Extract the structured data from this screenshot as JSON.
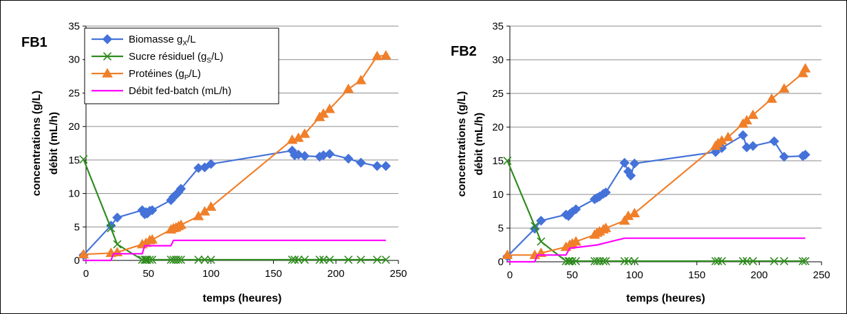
{
  "chart_data": [
    {
      "type": "line",
      "title": "FB1",
      "xlabel": "temps (heures)",
      "ylabel": [
        "concentrations (g/L)",
        "débit (mL/h)"
      ],
      "xlim": [
        0,
        250
      ],
      "ylim": [
        0,
        35
      ],
      "xticks": [
        "0",
        "50",
        "100",
        "150",
        "200",
        "250"
      ],
      "yticks": [
        "0",
        "5",
        "10",
        "15",
        "20",
        "25",
        "30",
        "35"
      ],
      "grid": "horizontal",
      "legend_position": "top-left",
      "series": [
        {
          "name": "Biomasse gX/L",
          "legend": {
            "base": "Biomasse g",
            "sub": "X",
            "tail": "/L"
          },
          "color": "#4472d9",
          "marker": "diamond",
          "points": [
            [
              -2,
              0.8
            ],
            [
              20,
              5.2
            ],
            [
              25,
              6.4
            ],
            [
              45,
              7.5
            ],
            [
              47,
              6.9
            ],
            [
              48,
              7.2
            ],
            [
              49,
              7.0
            ],
            [
              51,
              7.4
            ],
            [
              53,
              7.5
            ],
            [
              68,
              9.0
            ],
            [
              70,
              9.5
            ],
            [
              72,
              9.8
            ],
            [
              74,
              10.2
            ],
            [
              76,
              10.7
            ],
            [
              90,
              13.8
            ],
            [
              95,
              13.9
            ],
            [
              100,
              14.4
            ],
            [
              165,
              16.4
            ],
            [
              167,
              15.7
            ],
            [
              170,
              15.8
            ],
            [
              175,
              15.6
            ],
            [
              187,
              15.5
            ],
            [
              190,
              15.7
            ],
            [
              195,
              15.9
            ],
            [
              210,
              15.2
            ],
            [
              220,
              14.6
            ],
            [
              233,
              14.1
            ],
            [
              240,
              14.1
            ]
          ]
        },
        {
          "name": "Sucre résiduel (gS/L)",
          "legend": {
            "base": "Sucre résiduel (g",
            "sub": "S",
            "tail": "/L)"
          },
          "color": "#2e8b1e",
          "marker": "x",
          "points": [
            [
              -2,
              15.1
            ],
            [
              20,
              4.8
            ],
            [
              25,
              2.4
            ],
            [
              45,
              0.1
            ],
            [
              47,
              0.1
            ],
            [
              48,
              0.1
            ],
            [
              49,
              0.1
            ],
            [
              51,
              0.1
            ],
            [
              53,
              0.1
            ],
            [
              68,
              0.1
            ],
            [
              70,
              0.1
            ],
            [
              72,
              0.1
            ],
            [
              74,
              0.1
            ],
            [
              76,
              0.1
            ],
            [
              90,
              0.1
            ],
            [
              95,
              0.1
            ],
            [
              100,
              0.1
            ],
            [
              165,
              0.1
            ],
            [
              167,
              0.1
            ],
            [
              170,
              0.1
            ],
            [
              175,
              0.1
            ],
            [
              187,
              0.1
            ],
            [
              190,
              0.1
            ],
            [
              195,
              0.1
            ],
            [
              210,
              0.1
            ],
            [
              220,
              0.1
            ],
            [
              233,
              0.1
            ],
            [
              240,
              0.1
            ]
          ]
        },
        {
          "name": "Protéines (gP/L)",
          "legend": {
            "base": "Protéines (g",
            "sub": "P",
            "tail": "/L)"
          },
          "color": "#f07f2a",
          "marker": "triangle",
          "points": [
            [
              -2,
              0.9
            ],
            [
              20,
              1.1
            ],
            [
              25,
              1.2
            ],
            [
              45,
              2.4
            ],
            [
              48,
              2.6
            ],
            [
              51,
              3.0
            ],
            [
              53,
              3.1
            ],
            [
              68,
              4.6
            ],
            [
              70,
              4.8
            ],
            [
              72,
              4.9
            ],
            [
              74,
              5.1
            ],
            [
              76,
              5.3
            ],
            [
              90,
              6.6
            ],
            [
              95,
              7.3
            ],
            [
              100,
              8.0
            ],
            [
              165,
              18.0
            ],
            [
              170,
              18.3
            ],
            [
              175,
              18.9
            ],
            [
              187,
              21.4
            ],
            [
              190,
              21.9
            ],
            [
              195,
              22.6
            ],
            [
              210,
              25.6
            ],
            [
              220,
              26.9
            ],
            [
              233,
              30.5
            ],
            [
              240,
              30.6
            ]
          ]
        },
        {
          "name": "Débit fed-batch (mL/h)",
          "legend": {
            "base": "Débit fed-batch (mL/h)",
            "sub": "",
            "tail": ""
          },
          "color": "#ff00ff",
          "marker": "none",
          "points": [
            [
              -2,
              0
            ],
            [
              20,
              0
            ],
            [
              22,
              1.0
            ],
            [
              45,
              1.0
            ],
            [
              47,
              2.2
            ],
            [
              68,
              2.2
            ],
            [
              70,
              3.0
            ],
            [
              240,
              3.0
            ]
          ]
        }
      ]
    },
    {
      "type": "line",
      "title": "FB2",
      "xlabel": "temps (heures)",
      "ylabel": [
        "concentrations (g/L)",
        "débit (mL/h)"
      ],
      "xlim": [
        0,
        250
      ],
      "ylim": [
        0,
        35
      ],
      "xticks": [
        "0",
        "50",
        "100",
        "150",
        "200",
        "250"
      ],
      "yticks": [
        "0",
        "5",
        "10",
        "15",
        "20",
        "25",
        "30",
        "35"
      ],
      "grid": "horizontal",
      "legend_position": "none",
      "series": [
        {
          "name": "Biomasse gX/L",
          "color": "#4472d9",
          "marker": "diamond",
          "points": [
            [
              -2,
              0.8
            ],
            [
              20,
              4.9
            ],
            [
              25,
              6.1
            ],
            [
              45,
              7.0
            ],
            [
              47,
              6.8
            ],
            [
              48,
              7.1
            ],
            [
              50,
              7.4
            ],
            [
              53,
              7.8
            ],
            [
              68,
              9.3
            ],
            [
              70,
              9.5
            ],
            [
              72,
              9.7
            ],
            [
              75,
              10.1
            ],
            [
              77,
              10.3
            ],
            [
              92,
              14.7
            ],
            [
              95,
              13.4
            ],
            [
              97,
              12.8
            ],
            [
              100,
              14.6
            ],
            [
              165,
              16.3
            ],
            [
              170,
              16.9
            ],
            [
              187,
              18.8
            ],
            [
              190,
              17.0
            ],
            [
              195,
              17.2
            ],
            [
              212,
              17.9
            ],
            [
              220,
              15.6
            ],
            [
              235,
              15.7
            ],
            [
              237,
              15.9
            ]
          ]
        },
        {
          "name": "Sucre résiduel (gS/L)",
          "color": "#2e8b1e",
          "marker": "x",
          "points": [
            [
              -2,
              15.0
            ],
            [
              20,
              5.3
            ],
            [
              25,
              3.0
            ],
            [
              45,
              0.1
            ],
            [
              47,
              0.1
            ],
            [
              48,
              0.1
            ],
            [
              50,
              0.1
            ],
            [
              53,
              0.1
            ],
            [
              68,
              0.1
            ],
            [
              70,
              0.1
            ],
            [
              72,
              0.1
            ],
            [
              75,
              0.1
            ],
            [
              77,
              0.1
            ],
            [
              92,
              0.1
            ],
            [
              95,
              0.1
            ],
            [
              100,
              0.1
            ],
            [
              165,
              0.1
            ],
            [
              167,
              0.1
            ],
            [
              170,
              0.1
            ],
            [
              187,
              0.1
            ],
            [
              190,
              0.1
            ],
            [
              195,
              0.1
            ],
            [
              212,
              0.1
            ],
            [
              220,
              0.1
            ],
            [
              235,
              0.1
            ],
            [
              237,
              0.1
            ]
          ]
        },
        {
          "name": "Protéines (gP/L)",
          "color": "#f07f2a",
          "marker": "triangle",
          "points": [
            [
              -2,
              1.0
            ],
            [
              20,
              1.0
            ],
            [
              25,
              1.3
            ],
            [
              45,
              2.2
            ],
            [
              48,
              2.5
            ],
            [
              50,
              2.7
            ],
            [
              53,
              3.0
            ],
            [
              68,
              4.0
            ],
            [
              70,
              4.3
            ],
            [
              72,
              4.5
            ],
            [
              75,
              4.8
            ],
            [
              77,
              5.0
            ],
            [
              92,
              6.1
            ],
            [
              95,
              6.8
            ],
            [
              100,
              7.2
            ],
            [
              165,
              17.2
            ],
            [
              167,
              17.6
            ],
            [
              170,
              18.0
            ],
            [
              175,
              18.5
            ],
            [
              187,
              20.5
            ],
            [
              190,
              21.0
            ],
            [
              195,
              21.8
            ],
            [
              210,
              24.2
            ],
            [
              220,
              25.7
            ],
            [
              235,
              28.0
            ],
            [
              237,
              28.7
            ]
          ]
        },
        {
          "name": "Débit fed-batch (mL/h)",
          "color": "#ff00ff",
          "marker": "none",
          "points": [
            [
              -2,
              0
            ],
            [
              20,
              0
            ],
            [
              22,
              1.0
            ],
            [
              45,
              1.0
            ],
            [
              48,
              2.0
            ],
            [
              70,
              2.5
            ],
            [
              92,
              3.5
            ],
            [
              237,
              3.5
            ]
          ]
        }
      ]
    }
  ]
}
